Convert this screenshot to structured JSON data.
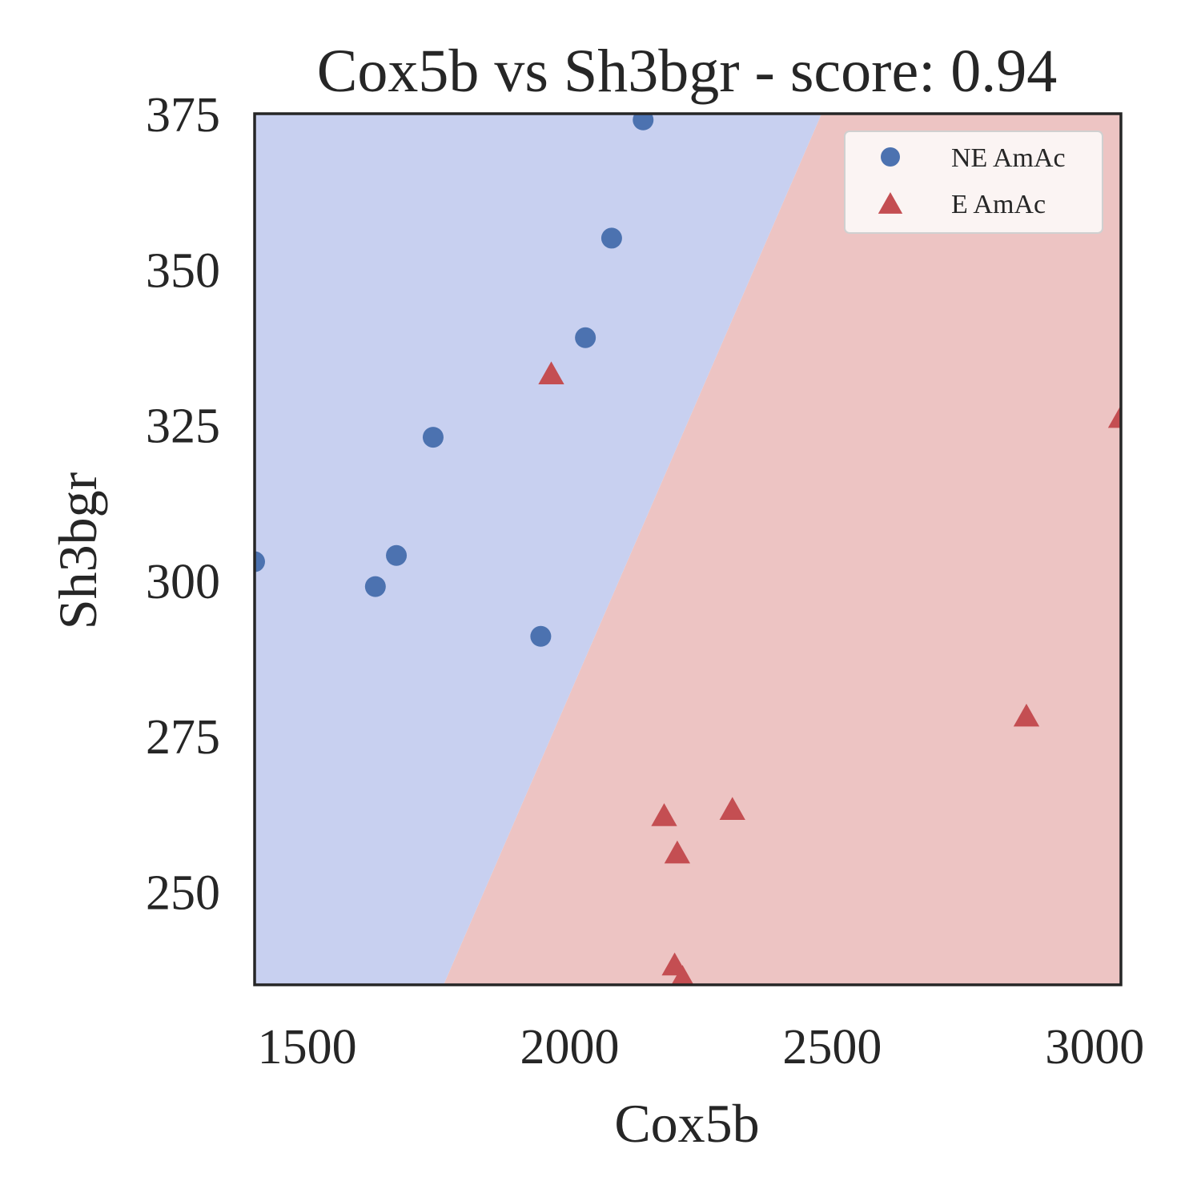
{
  "chart_data": {
    "type": "scatter",
    "title": "Cox5b vs Sh3bgr - score: 0.94",
    "xlabel": "Cox5b",
    "ylabel": "Sh3bgr",
    "xlim": [
      1400,
      3050
    ],
    "ylim": [
      235,
      375
    ],
    "xticks": [
      1500,
      2000,
      2500,
      3000
    ],
    "yticks": [
      250,
      275,
      300,
      325,
      350,
      375
    ],
    "grid": false,
    "legend_position": "top-right",
    "decision_regions": {
      "boundary": [
        [
          1760,
          235
        ],
        [
          2480,
          375
        ]
      ],
      "left_class": "NE AmAc",
      "right_class": "E AmAc",
      "left_color": "#c8d0f0",
      "right_color": "#edc4c3"
    },
    "series": [
      {
        "name": "NE AmAc",
        "marker": "circle",
        "color": "#4c72b0",
        "points": [
          [
            2140,
            374
          ],
          [
            2080,
            355
          ],
          [
            2030,
            339
          ],
          [
            1740,
            323
          ],
          [
            1670,
            304
          ],
          [
            1630,
            299
          ],
          [
            1400,
            303
          ],
          [
            1945,
            291
          ]
        ]
      },
      {
        "name": "E AmAc",
        "marker": "triangle",
        "color": "#c44e52",
        "points": [
          [
            1965,
            333
          ],
          [
            3050,
            326
          ],
          [
            2870,
            278
          ],
          [
            2310,
            263
          ],
          [
            2180,
            262
          ],
          [
            2205,
            256
          ],
          [
            2200,
            238
          ],
          [
            2215,
            236
          ]
        ]
      }
    ]
  }
}
